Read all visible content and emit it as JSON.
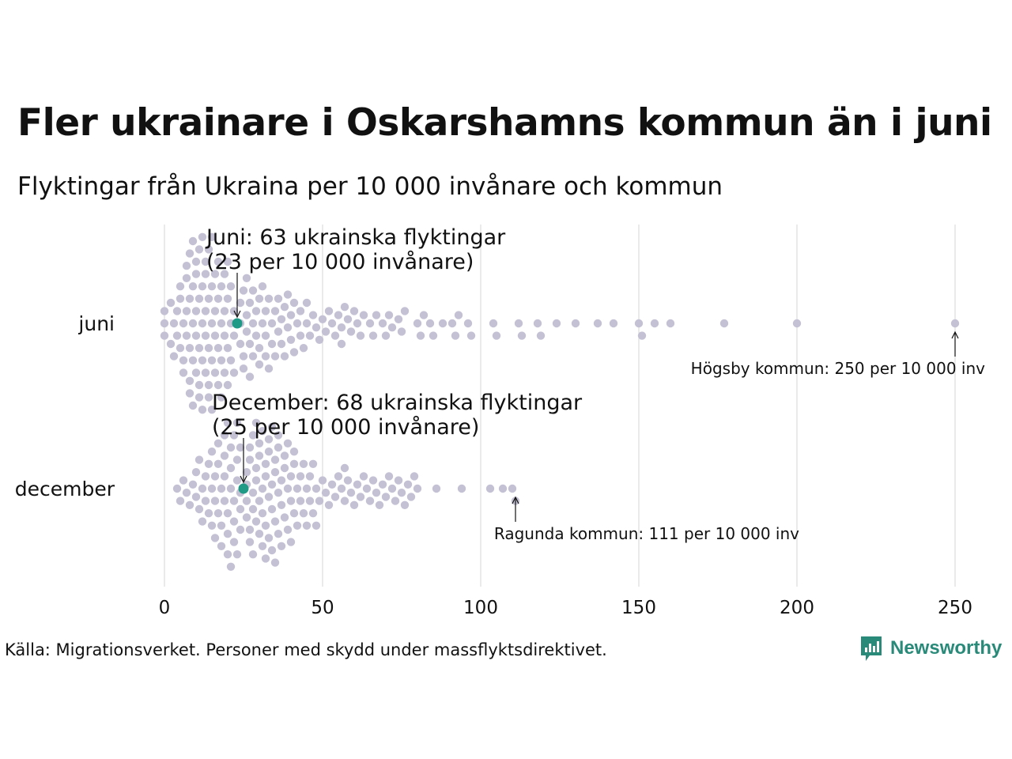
{
  "title": "Fler ukrainare i Oskarshamns kommun än i juni",
  "subtitle": "Flyktingar från Ukraina per 10 000 invånare och kommun",
  "source": "Källa: Migrationsverket. Personer med skydd under massflyktsdirektivet.",
  "logo_text": "Newsworthy",
  "colors": {
    "dots": "#c4c1d4",
    "highlight": "#1f9a86",
    "grid": "#d6d6d6",
    "logo": "#2a8a79"
  },
  "chart_data": {
    "type": "scatter",
    "subtype": "beeswarm",
    "xlim": [
      0,
      250
    ],
    "xticks": [
      0,
      50,
      100,
      150,
      200,
      250
    ],
    "xlabel": "",
    "ylabel": "",
    "grid": true,
    "categories": [
      "juni",
      "december"
    ],
    "series": [
      {
        "name": "juni",
        "values": [
          0,
          0,
          0,
          2,
          2,
          3,
          3,
          4,
          4,
          5,
          5,
          5,
          6,
          6,
          6,
          7,
          7,
          7,
          7,
          8,
          8,
          8,
          8,
          8,
          9,
          9,
          9,
          9,
          9,
          10,
          10,
          10,
          10,
          10,
          11,
          11,
          11,
          11,
          11,
          12,
          12,
          12,
          12,
          12,
          13,
          13,
          13,
          13,
          13,
          14,
          14,
          14,
          14,
          14,
          15,
          15,
          15,
          15,
          15,
          16,
          16,
          16,
          16,
          17,
          17,
          17,
          17,
          18,
          18,
          18,
          18,
          19,
          19,
          19,
          19,
          20,
          20,
          20,
          20,
          21,
          21,
          21,
          22,
          22,
          22,
          24,
          24,
          24,
          25,
          25,
          25,
          26,
          26,
          26,
          27,
          27,
          27,
          28,
          28,
          28,
          29,
          29,
          30,
          30,
          30,
          31,
          31,
          32,
          32,
          32,
          33,
          33,
          34,
          34,
          35,
          35,
          36,
          36,
          37,
          37,
          38,
          38,
          39,
          39,
          40,
          40,
          41,
          41,
          42,
          43,
          43,
          44,
          45,
          45,
          46,
          47,
          48,
          49,
          50,
          51,
          52,
          53,
          54,
          55,
          56,
          56,
          57,
          58,
          59,
          60,
          61,
          62,
          63,
          65,
          66,
          67,
          69,
          70,
          71,
          72,
          74,
          75,
          76,
          80,
          81,
          82,
          84,
          85,
          88,
          91,
          92,
          93,
          96,
          97,
          104,
          105,
          112,
          113,
          118,
          119,
          124,
          130,
          137,
          142,
          150,
          151,
          155,
          160,
          177,
          200,
          250
        ],
        "highlight": {
          "value": 23,
          "label_line1": "Juni: 63 ukrainska flyktingar",
          "label_line2": "(23 per 10 000 invånare)"
        },
        "max_annotation": {
          "value": 250,
          "label": "Högsby kommun: 250 per 10 000 inv"
        }
      },
      {
        "name": "december",
        "values": [
          4,
          5,
          6,
          7,
          8,
          9,
          10,
          10,
          11,
          11,
          12,
          12,
          13,
          13,
          14,
          14,
          15,
          15,
          15,
          16,
          16,
          16,
          17,
          17,
          17,
          18,
          18,
          18,
          19,
          19,
          19,
          19,
          20,
          20,
          20,
          20,
          21,
          21,
          21,
          21,
          22,
          22,
          22,
          22,
          23,
          23,
          23,
          23,
          24,
          24,
          24,
          24,
          26,
          26,
          26,
          26,
          27,
          27,
          27,
          27,
          28,
          28,
          28,
          28,
          29,
          29,
          29,
          29,
          30,
          30,
          30,
          30,
          31,
          31,
          31,
          31,
          32,
          32,
          32,
          32,
          33,
          33,
          33,
          33,
          34,
          34,
          34,
          34,
          35,
          35,
          35,
          35,
          36,
          36,
          36,
          36,
          37,
          37,
          37,
          38,
          38,
          38,
          39,
          39,
          39,
          40,
          40,
          40,
          41,
          41,
          41,
          42,
          42,
          43,
          43,
          44,
          44,
          45,
          45,
          46,
          46,
          47,
          47,
          48,
          48,
          49,
          50,
          51,
          52,
          53,
          54,
          55,
          56,
          57,
          57,
          58,
          59,
          60,
          61,
          62,
          63,
          64,
          65,
          66,
          67,
          68,
          69,
          70,
          71,
          72,
          73,
          74,
          75,
          76,
          77,
          78,
          79,
          80,
          86,
          94,
          103,
          107,
          110,
          111
        ],
        "highlight": {
          "value": 25,
          "label_line1": "December: 68 ukrainska flyktingar",
          "label_line2": "(25 per 10 000 invånare)"
        },
        "max_annotation": {
          "value": 111,
          "label": "Ragunda kommun: 111 per 10 000 inv"
        }
      }
    ]
  }
}
